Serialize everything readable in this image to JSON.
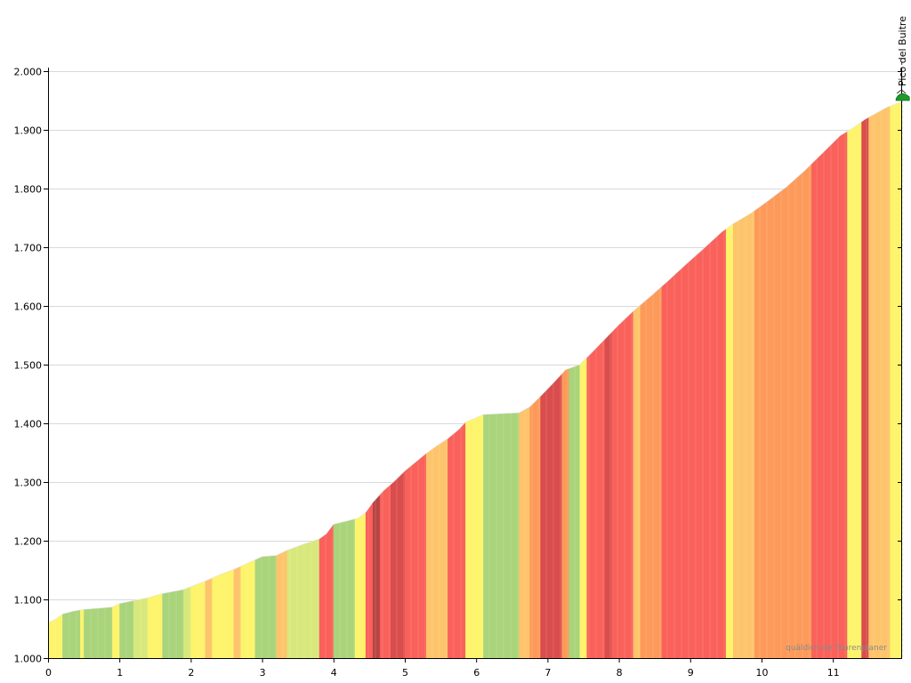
{
  "chart_data": {
    "type": "area",
    "x_unit": "km",
    "y_unit": "m",
    "xlim": [
      0,
      11.96
    ],
    "ylim": [
      1000,
      2000
    ],
    "x_ticks": [
      "0",
      "1",
      "2",
      "3",
      "4",
      "5",
      "6",
      "7",
      "8",
      "9",
      "10",
      "11"
    ],
    "y_ticks": [
      "1.000",
      "1.100",
      "1.200",
      "1.300",
      "1.400",
      "1.500",
      "1.600",
      "1.700",
      "1.800",
      "1.900",
      "2.000"
    ],
    "grid": "horizontal",
    "summit": {
      "label": "Pico del Buitre",
      "x": 11.96,
      "y": 1950
    },
    "credit": "quäldich.de Tourenplaner",
    "gradient_colors": {
      "flat": "#a9d47b",
      "easy": "#d9e87c",
      "moderate": "#fdf46b",
      "medium": "#fdc46b",
      "steep": "#fd9a5a",
      "very_steep": "#f9615a",
      "extreme": "#d94d4d",
      "max": "#b84444"
    },
    "profile": [
      [
        0.0,
        1060
      ],
      [
        0.1,
        1066
      ],
      [
        0.2,
        1075
      ],
      [
        0.35,
        1080
      ],
      [
        0.5,
        1083
      ],
      [
        0.9,
        1087
      ],
      [
        1.0,
        1093
      ],
      [
        1.2,
        1098
      ],
      [
        1.4,
        1103
      ],
      [
        1.6,
        1110
      ],
      [
        1.9,
        1117
      ],
      [
        2.0,
        1122
      ],
      [
        2.2,
        1131
      ],
      [
        2.4,
        1142
      ],
      [
        2.6,
        1151
      ],
      [
        2.8,
        1162
      ],
      [
        3.0,
        1173
      ],
      [
        3.2,
        1175
      ],
      [
        3.35,
        1184
      ],
      [
        3.6,
        1195
      ],
      [
        3.8,
        1203
      ],
      [
        3.9,
        1212
      ],
      [
        4.0,
        1228
      ],
      [
        4.2,
        1234
      ],
      [
        4.35,
        1239
      ],
      [
        4.45,
        1248
      ],
      [
        4.55,
        1265
      ],
      [
        4.7,
        1285
      ],
      [
        4.85,
        1301
      ],
      [
        5.0,
        1319
      ],
      [
        5.15,
        1334
      ],
      [
        5.3,
        1349
      ],
      [
        5.45,
        1362
      ],
      [
        5.6,
        1374
      ],
      [
        5.75,
        1389
      ],
      [
        5.85,
        1402
      ],
      [
        6.1,
        1415
      ],
      [
        6.6,
        1418
      ],
      [
        6.75,
        1428
      ],
      [
        6.9,
        1446
      ],
      [
        7.1,
        1471
      ],
      [
        7.25,
        1491
      ],
      [
        7.45,
        1500
      ],
      [
        7.6,
        1518
      ],
      [
        7.8,
        1543
      ],
      [
        8.0,
        1568
      ],
      [
        8.2,
        1591
      ],
      [
        8.45,
        1617
      ],
      [
        8.7,
        1644
      ],
      [
        8.95,
        1672
      ],
      [
        9.2,
        1699
      ],
      [
        9.45,
        1727
      ],
      [
        9.6,
        1740
      ],
      [
        9.85,
        1758
      ],
      [
        10.1,
        1780
      ],
      [
        10.35,
        1803
      ],
      [
        10.6,
        1830
      ],
      [
        10.85,
        1860
      ],
      [
        11.1,
        1890
      ],
      [
        11.3,
        1905
      ],
      [
        11.45,
        1918
      ],
      [
        11.6,
        1928
      ],
      [
        11.75,
        1938
      ],
      [
        11.96,
        1948
      ]
    ],
    "segments": [
      [
        0.0,
        0.2,
        "moderate"
      ],
      [
        0.2,
        0.45,
        "flat"
      ],
      [
        0.45,
        0.5,
        "moderate"
      ],
      [
        0.5,
        0.9,
        "flat"
      ],
      [
        0.9,
        1.0,
        "moderate"
      ],
      [
        1.0,
        1.2,
        "flat"
      ],
      [
        1.2,
        1.4,
        "easy"
      ],
      [
        1.4,
        1.6,
        "moderate"
      ],
      [
        1.6,
        1.9,
        "flat"
      ],
      [
        1.9,
        2.0,
        "easy"
      ],
      [
        2.0,
        2.2,
        "moderate"
      ],
      [
        2.2,
        2.3,
        "medium"
      ],
      [
        2.3,
        2.6,
        "moderate"
      ],
      [
        2.6,
        2.7,
        "medium"
      ],
      [
        2.7,
        2.9,
        "moderate"
      ],
      [
        2.9,
        3.2,
        "flat"
      ],
      [
        3.2,
        3.35,
        "medium"
      ],
      [
        3.35,
        3.8,
        "easy"
      ],
      [
        3.8,
        4.0,
        "very_steep"
      ],
      [
        4.0,
        4.3,
        "flat"
      ],
      [
        4.3,
        4.45,
        "moderate"
      ],
      [
        4.45,
        4.55,
        "very_steep"
      ],
      [
        4.55,
        4.65,
        "max"
      ],
      [
        4.65,
        4.8,
        "very_steep"
      ],
      [
        4.8,
        5.0,
        "extreme"
      ],
      [
        5.0,
        5.3,
        "very_steep"
      ],
      [
        5.3,
        5.6,
        "medium"
      ],
      [
        5.6,
        5.85,
        "very_steep"
      ],
      [
        5.85,
        6.1,
        "moderate"
      ],
      [
        6.1,
        6.6,
        "flat"
      ],
      [
        6.6,
        6.75,
        "medium"
      ],
      [
        6.75,
        6.9,
        "steep"
      ],
      [
        6.9,
        7.2,
        "extreme"
      ],
      [
        7.2,
        7.3,
        "steep"
      ],
      [
        7.3,
        7.45,
        "flat"
      ],
      [
        7.45,
        7.55,
        "moderate"
      ],
      [
        7.55,
        7.8,
        "very_steep"
      ],
      [
        7.8,
        7.9,
        "extreme"
      ],
      [
        7.9,
        8.2,
        "very_steep"
      ],
      [
        8.2,
        8.3,
        "medium"
      ],
      [
        8.3,
        8.6,
        "steep"
      ],
      [
        8.6,
        9.5,
        "very_steep"
      ],
      [
        9.5,
        9.6,
        "moderate"
      ],
      [
        9.6,
        9.9,
        "medium"
      ],
      [
        9.9,
        10.4,
        "steep"
      ],
      [
        10.4,
        10.7,
        "steep"
      ],
      [
        10.7,
        11.2,
        "very_steep"
      ],
      [
        11.2,
        11.4,
        "moderate"
      ],
      [
        11.4,
        11.5,
        "extreme"
      ],
      [
        11.5,
        11.8,
        "medium"
      ],
      [
        11.8,
        11.96,
        "moderate"
      ]
    ]
  }
}
